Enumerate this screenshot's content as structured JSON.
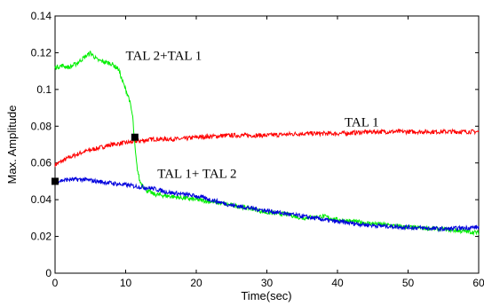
{
  "chart_data": {
    "type": "line",
    "title": "",
    "xlabel": "Time(sec)",
    "ylabel": "Max. Amplitude",
    "xlim": [
      0,
      60
    ],
    "ylim": [
      0,
      0.14
    ],
    "xticks": [
      0,
      10,
      20,
      30,
      40,
      50,
      60
    ],
    "xtick_labels": [
      "0",
      "10",
      "20",
      "30",
      "40",
      "50",
      "60"
    ],
    "yticks": [
      0,
      0.02,
      0.04,
      0.06,
      0.08,
      0.1,
      0.12,
      0.14
    ],
    "ytick_labels": [
      "0",
      "0.02",
      "0.04",
      "0.06",
      "0.08",
      "0.1",
      "0.12",
      "0.14"
    ],
    "grid": false,
    "legend": "none",
    "series": [
      {
        "name": "TAL 1",
        "color": "#ff0000",
        "x": [
          0,
          2,
          4,
          6,
          8,
          10,
          12,
          14,
          16,
          18,
          20,
          25,
          30,
          35,
          40,
          45,
          50,
          55,
          60
        ],
        "y": [
          0.059,
          0.063,
          0.066,
          0.068,
          0.07,
          0.071,
          0.072,
          0.073,
          0.073,
          0.073,
          0.074,
          0.075,
          0.075,
          0.076,
          0.076,
          0.077,
          0.077,
          0.077,
          0.077
        ]
      },
      {
        "name": "TAL 2+TAL 1",
        "color": "#00ee00",
        "x": [
          0,
          1,
          2,
          3,
          4,
          5,
          6,
          7,
          8,
          9,
          9.5,
          10,
          10.5,
          11,
          11.2,
          11.4,
          11.6,
          12,
          13,
          14,
          16,
          18,
          20,
          22,
          25,
          28,
          30,
          33,
          35,
          38,
          40,
          45,
          50,
          55,
          60
        ],
        "y": [
          0.112,
          0.113,
          0.112,
          0.114,
          0.117,
          0.12,
          0.116,
          0.115,
          0.114,
          0.111,
          0.105,
          0.1,
          0.095,
          0.085,
          0.074,
          0.065,
          0.058,
          0.05,
          0.045,
          0.043,
          0.042,
          0.041,
          0.04,
          0.039,
          0.037,
          0.035,
          0.033,
          0.032,
          0.03,
          0.031,
          0.029,
          0.027,
          0.025,
          0.024,
          0.022
        ]
      },
      {
        "name": "TAL 1+ TAL 2",
        "color": "#0000dd",
        "x": [
          0,
          2,
          4,
          6,
          8,
          10,
          12,
          14,
          16,
          18,
          20,
          25,
          30,
          35,
          40,
          45,
          50,
          55,
          60
        ],
        "y": [
          0.05,
          0.051,
          0.051,
          0.05,
          0.049,
          0.048,
          0.047,
          0.046,
          0.044,
          0.043,
          0.042,
          0.037,
          0.034,
          0.031,
          0.028,
          0.026,
          0.025,
          0.024,
          0.025
        ]
      }
    ],
    "markers": [
      {
        "x": 0,
        "y": 0.05
      },
      {
        "x": 11.3,
        "y": 0.074
      }
    ],
    "annotations": [
      {
        "text": "TAL 2+TAL 1",
        "x": 10,
        "y": 0.116
      },
      {
        "text": "TAL 1",
        "x": 41,
        "y": 0.08
      },
      {
        "text": "TAL 1+ TAL 2",
        "x": 14.5,
        "y": 0.052
      }
    ]
  }
}
